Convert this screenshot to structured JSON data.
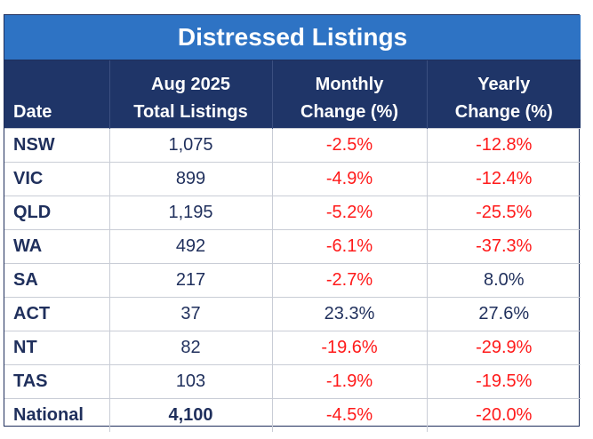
{
  "table": {
    "title": "Distressed Listings",
    "headers": {
      "date": "Date",
      "total_line1": "Aug 2025",
      "total_line2": "Total Listings",
      "monthly_line1": "Monthly",
      "monthly_line2": "Change (%)",
      "yearly_line1": "Yearly",
      "yearly_line2": "Change (%)"
    },
    "rows": [
      {
        "region": "NSW",
        "total": "1,075",
        "monthly": "-2.5%",
        "yearly": "-12.8%"
      },
      {
        "region": "VIC",
        "total": "899",
        "monthly": "-4.9%",
        "yearly": "-12.4%"
      },
      {
        "region": "QLD",
        "total": "1,195",
        "monthly": "-5.2%",
        "yearly": "-25.5%"
      },
      {
        "region": "WA",
        "total": "492",
        "monthly": "-6.1%",
        "yearly": "-37.3%"
      },
      {
        "region": "SA",
        "total": "217",
        "monthly": "-2.7%",
        "yearly": "8.0%"
      },
      {
        "region": "ACT",
        "total": "37",
        "monthly": "23.3%",
        "yearly": "27.6%"
      },
      {
        "region": "NT",
        "total": "82",
        "monthly": "-19.6%",
        "yearly": "-29.9%"
      },
      {
        "region": "TAS",
        "total": "103",
        "monthly": "-1.9%",
        "yearly": "-19.5%"
      },
      {
        "region": "National",
        "total": "4,100",
        "monthly": "-4.5%",
        "yearly": "-20.0%"
      }
    ]
  },
  "colors": {
    "title_bg": "#2e73c4",
    "header_bg": "#1f3568",
    "negative": "#ff1a1a",
    "text": "#1f2f5c"
  }
}
